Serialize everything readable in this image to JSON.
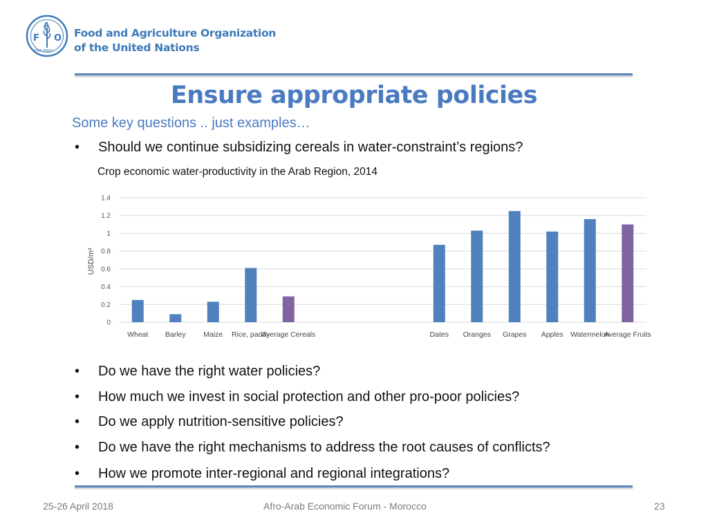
{
  "header": {
    "org_line1": "Food and Agriculture Organization",
    "org_line2": "of the United Nations",
    "logo_letters": [
      "F",
      "A",
      "O"
    ],
    "logo_motto": "FIAT PANIS"
  },
  "slide": {
    "title": "Ensure appropriate policies",
    "subtitle": "Some key questions .. just examples…",
    "first_bullet": "Should we continue subsidizing cereals in water-constraint’s regions?",
    "bullets": [
      "Do we have the right water policies?",
      "How much we invest in social protection and other pro-poor policies?",
      "Do we apply nutrition-sensitive policies?",
      "Do we have the right mechanisms to address the root causes of conflicts?",
      "How we promote inter-regional and regional integrations?"
    ],
    "bullet_symbol": "•"
  },
  "chart_data": {
    "type": "bar",
    "title": "Crop economic water-productivity in the Arab Region, 2014",
    "ylabel": "USD/m³",
    "xlabel": "",
    "ylim": [
      0,
      1.4
    ],
    "yticks": [
      0,
      0.2,
      0.4,
      0.6,
      0.8,
      1,
      1.2,
      1.4
    ],
    "grid": true,
    "categories": [
      "Wheat",
      "Barley",
      "Maize",
      "Rice, paddy",
      "Average Cereals",
      "",
      "",
      "",
      "Dates",
      "Oranges",
      "Grapes",
      "Apples",
      "Watermelon",
      "Average Fruits"
    ],
    "values": [
      0.25,
      0.09,
      0.23,
      0.61,
      0.29,
      null,
      null,
      null,
      0.87,
      1.03,
      1.25,
      1.02,
      1.16,
      1.1
    ],
    "bar_colors": [
      "#4f81bd",
      "#4f81bd",
      "#4f81bd",
      "#4f81bd",
      "#8064a2",
      null,
      null,
      null,
      "#4f81bd",
      "#4f81bd",
      "#4f81bd",
      "#4f81bd",
      "#4f81bd",
      "#8064a2"
    ]
  },
  "footer": {
    "date": "25-26 April 2018",
    "event": "Afro-Arab Economic Forum - Morocco",
    "page": "23"
  },
  "colors": {
    "accent": "#4a7ac0",
    "logo": "#3d7ab8",
    "bar_primary": "#4f81bd",
    "bar_average": "#8064a2"
  }
}
